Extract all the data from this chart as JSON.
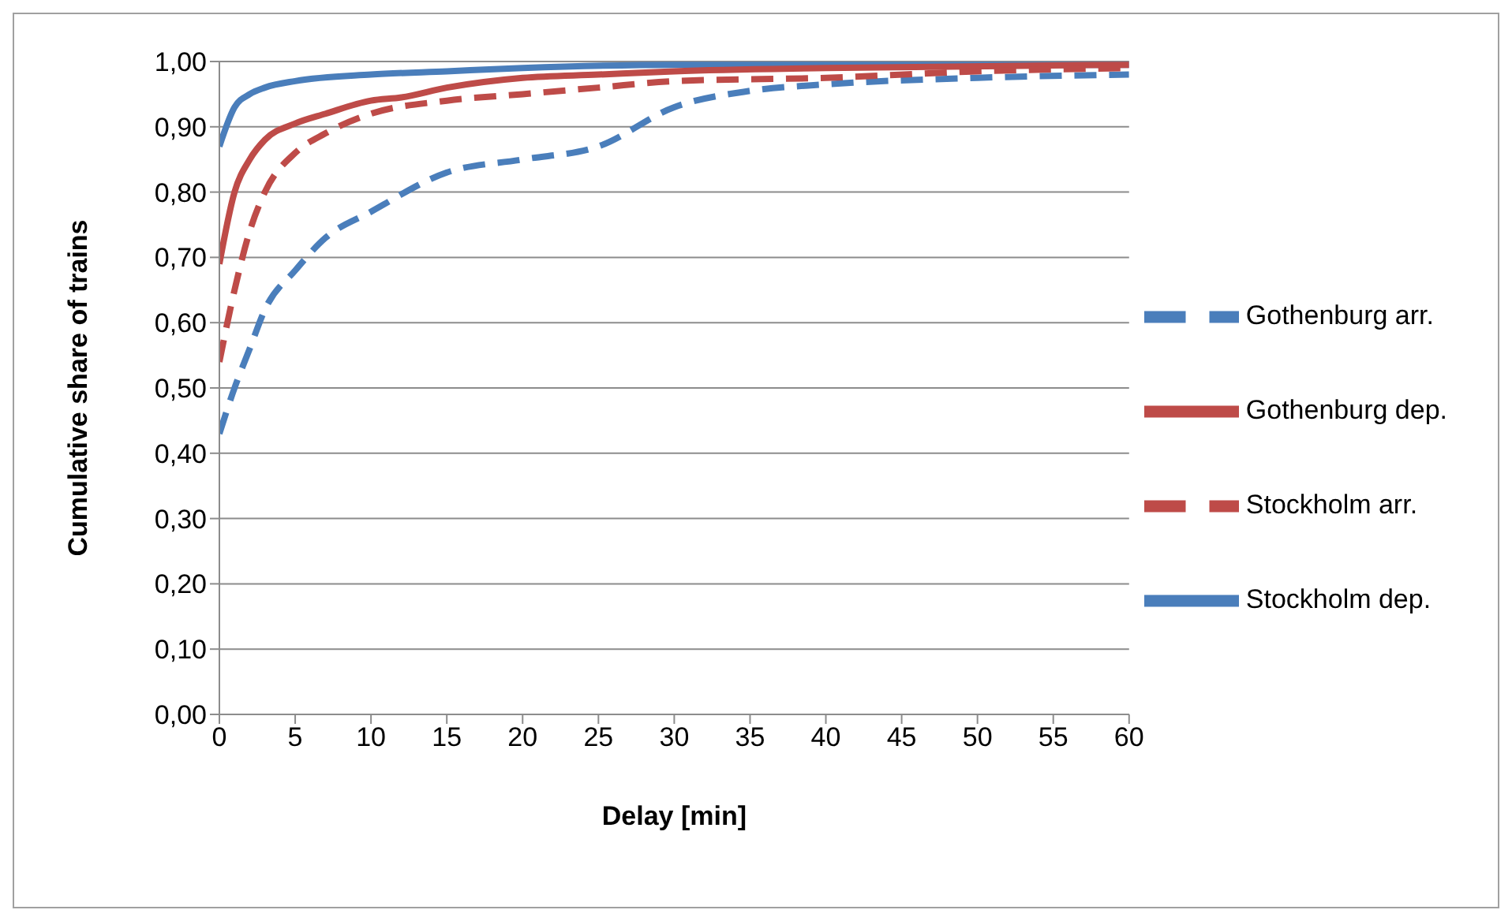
{
  "chart_data": {
    "type": "line",
    "xlabel": "Delay [min]",
    "ylabel": "Cumulative share of trains",
    "xlim": [
      0,
      60
    ],
    "xticks": [
      0,
      5,
      10,
      15,
      20,
      25,
      30,
      35,
      40,
      45,
      50,
      55,
      60
    ],
    "ylim": [
      0,
      1
    ],
    "yticks": [
      {
        "value": 0,
        "label": "0,00"
      },
      {
        "value": 0.1,
        "label": "0,10"
      },
      {
        "value": 0.2,
        "label": "0,20"
      },
      {
        "value": 0.3,
        "label": "0,30"
      },
      {
        "value": 0.4,
        "label": "0,40"
      },
      {
        "value": 0.5,
        "label": "0,50"
      },
      {
        "value": 0.6,
        "label": "0,60"
      },
      {
        "value": 0.7,
        "label": "0,70"
      },
      {
        "value": 0.8,
        "label": "0,80"
      },
      {
        "value": 0.9,
        "label": "0,90"
      },
      {
        "value": 1,
        "label": "1,00"
      }
    ],
    "grid": "y",
    "legend": "right",
    "marker": "none",
    "series": [
      {
        "name": "Stockholm dep.",
        "color": "#4a7ebb",
        "line_style": "solid",
        "x": [
          0,
          1,
          2,
          3,
          5,
          10,
          15,
          20,
          30,
          60
        ],
        "values": [
          0.87,
          0.93,
          0.95,
          0.96,
          0.97,
          0.98,
          0.985,
          0.99,
          0.995,
          0.995
        ]
      },
      {
        "name": "Gothenburg dep.",
        "color": "#be4b48",
        "line_style": "solid",
        "x": [
          0,
          1,
          2,
          3,
          5,
          7,
          10,
          12,
          15,
          20,
          25,
          30,
          40,
          60
        ],
        "values": [
          0.69,
          0.8,
          0.85,
          0.88,
          0.905,
          0.92,
          0.94,
          0.945,
          0.96,
          0.975,
          0.98,
          0.985,
          0.99,
          0.995
        ]
      },
      {
        "name": "Gothenburg arr.",
        "color": "#4a7ebb",
        "line_style": "dashed",
        "x": [
          0,
          1,
          2,
          3,
          5,
          7,
          10,
          15,
          20,
          25,
          30,
          35,
          40,
          50,
          60
        ],
        "values": [
          0.43,
          0.5,
          0.56,
          0.62,
          0.68,
          0.73,
          0.77,
          0.83,
          0.85,
          0.87,
          0.93,
          0.955,
          0.965,
          0.975,
          0.98
        ]
      },
      {
        "name": "Stockholm arr.",
        "color": "#be4b48",
        "line_style": "dashed",
        "x": [
          0,
          1,
          2,
          3,
          5,
          7,
          10,
          15,
          20,
          25,
          30,
          40,
          50,
          60
        ],
        "values": [
          0.54,
          0.65,
          0.74,
          0.8,
          0.86,
          0.89,
          0.92,
          0.94,
          0.95,
          0.96,
          0.97,
          0.975,
          0.985,
          0.99
        ]
      }
    ]
  }
}
